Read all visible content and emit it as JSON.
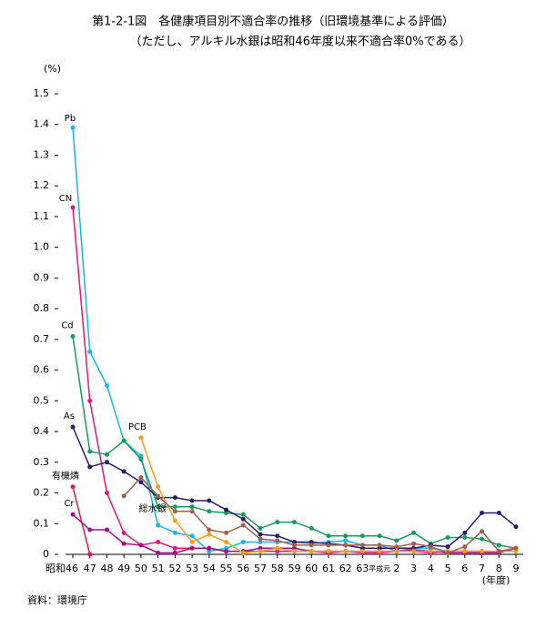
{
  "chart_data": {
    "type": "line",
    "title": "第1-2-1図　各健康項目別不適合率の推移（旧環境基準による評価）",
    "subtitle": "（ただし、アルキル水銀は昭和46年度以来不適合率0%である）",
    "y_label": "(%)",
    "x_label": "(年度)",
    "source": "資料：環境庁",
    "categories": [
      "昭和46",
      "47",
      "48",
      "49",
      "50",
      "51",
      "52",
      "53",
      "54",
      "55",
      "56",
      "57",
      "58",
      "59",
      "60",
      "61",
      "62",
      "63",
      "平成元",
      "2",
      "3",
      "4",
      "5",
      "6",
      "7",
      "8",
      "9"
    ],
    "ylim": [
      0,
      1.5
    ],
    "yticks": [
      0,
      0.1,
      0.2,
      0.3,
      0.4,
      0.5,
      0.6,
      0.7,
      0.8,
      0.9,
      {
        "value": 1,
        "label": "1.0"
      },
      1.1,
      1.2,
      1.3,
      1.4,
      1.5
    ],
    "series": [
      {
        "name": "Pb",
        "color": "#19b4ea",
        "values": [
          1.39,
          0.66,
          0.55,
          0.37,
          0.32,
          0.095,
          0.07,
          0.06,
          0.01,
          0.02,
          0.04,
          0.04,
          0.04,
          0.04,
          0.035,
          0.04,
          0.045,
          0.03,
          0.03,
          0.01,
          0.02,
          0.02,
          0.01,
          0.01,
          0.01,
          0.005,
          0.02
        ]
      },
      {
        "name": "CN",
        "color": "#e0187a",
        "values": [
          1.13,
          0.5,
          0.2,
          0.07,
          0.03,
          0.04,
          0.02,
          0.02,
          0.02,
          0.01,
          0.01,
          0.01,
          0.01,
          0.01,
          0.01,
          0.005,
          0.01,
          0.005,
          0.005,
          0.01,
          0.01,
          0.005,
          0.01,
          0.01,
          0.01,
          0.01,
          0.02
        ]
      },
      {
        "name": "Cd",
        "color": "#1a9a60",
        "values": [
          0.71,
          0.335,
          0.325,
          0.37,
          0.31,
          0.155,
          0.155,
          0.155,
          0.14,
          0.135,
          0.13,
          0.085,
          0.105,
          0.105,
          0.085,
          0.06,
          0.06,
          0.06,
          0.06,
          0.045,
          0.07,
          0.035,
          0.055,
          0.055,
          0.05,
          0.03,
          0.02
        ]
      },
      {
        "name": "As",
        "color": "#2a1a6a",
        "values": [
          0.415,
          0.285,
          0.3,
          0.27,
          0.235,
          0.185,
          0.185,
          0.175,
          0.175,
          0.145,
          0.115,
          0.065,
          0.06,
          0.04,
          0.04,
          0.035,
          0.03,
          0.02,
          0.02,
          0.02,
          0.02,
          0.03,
          0.025,
          0.07,
          0.135,
          0.135,
          0.09
        ]
      },
      {
        "name": "有機燐",
        "color": "#e01840",
        "values": [
          0.22,
          0,
          null,
          null,
          null,
          null,
          null,
          null,
          null,
          null,
          null,
          null,
          null,
          null,
          null,
          null,
          null,
          null,
          null,
          null,
          null,
          null,
          null,
          null,
          null,
          null,
          null
        ]
      },
      {
        "name": "Cr",
        "color": "#a01088",
        "values": [
          0.13,
          0.08,
          0.08,
          0.035,
          0.03,
          0.005,
          0.005,
          0.02,
          0.02,
          0.01,
          0.01,
          0.02,
          0.02,
          0.02,
          0.01,
          0.01,
          0.01,
          0.01,
          0.01,
          0.01,
          0.015,
          0.01,
          0.005,
          0.005,
          0.005,
          0.005,
          0.02
        ]
      },
      {
        "name": "PCB",
        "color": "#f0a020",
        "values": [
          null,
          null,
          null,
          null,
          0.38,
          0.22,
          0.11,
          0.04,
          0.065,
          0.04,
          0.005,
          0.01,
          0.02,
          0.01,
          0.01,
          0.01,
          0.01,
          0.01,
          0.01,
          0.01,
          0.01,
          0.01,
          0.01,
          0.01,
          0.01,
          0.01,
          0.01
        ]
      },
      {
        "name": "総水銀",
        "color": "#a06050",
        "values": [
          null,
          null,
          null,
          0.19,
          0.25,
          0.19,
          0.14,
          0.14,
          0.08,
          0.07,
          0.095,
          0.05,
          0.045,
          0.03,
          0.03,
          0.03,
          0.03,
          0.03,
          0.03,
          0.025,
          0.035,
          0.025,
          0.005,
          0.025,
          0.075,
          0.01,
          0.02
        ]
      }
    ]
  }
}
